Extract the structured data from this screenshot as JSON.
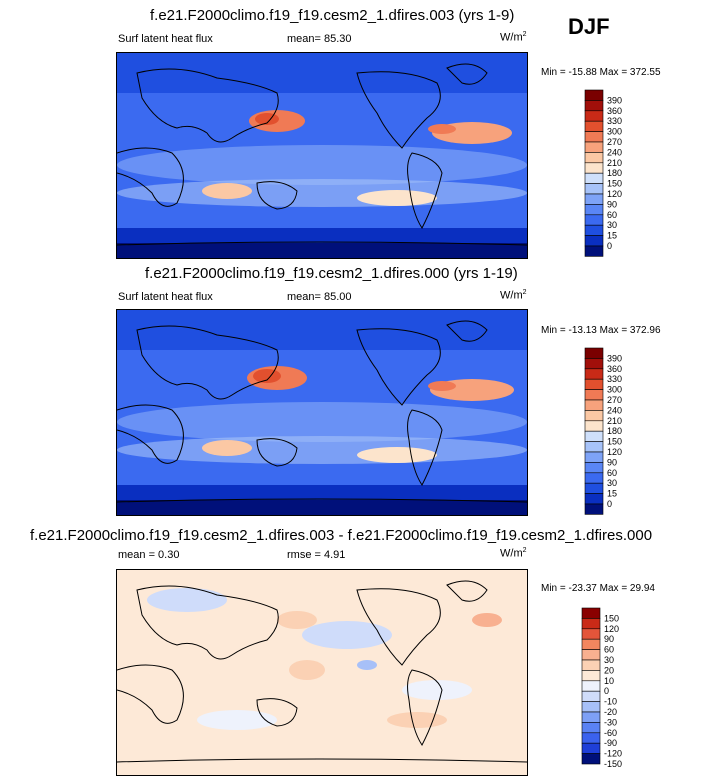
{
  "season": "DJF",
  "colors": {
    "abs_scale": [
      "#00107a",
      "#0a2fc0",
      "#1f4fe0",
      "#3b6af0",
      "#5a86f5",
      "#7ea3f7",
      "#a7c3f9",
      "#cfe0fb",
      "#f5f5f5",
      "#fce4cc",
      "#fbc8a4",
      "#f7a27c",
      "#f07a55",
      "#e2502e",
      "#c92a17",
      "#a10f0a",
      "#7a0000"
    ],
    "diff_scale": [
      "#00107a",
      "#1f3fd8",
      "#3b62ee",
      "#5a82f4",
      "#7ea0f6",
      "#a7c0f8",
      "#cfdcfa",
      "#eef2fc",
      "#fde9d7",
      "#fbd1b4",
      "#f8b090",
      "#f2865f",
      "#e4553a",
      "#c92a17",
      "#8a0000"
    ],
    "land_line": "#000000"
  },
  "panels": [
    {
      "id": "test",
      "title": "f.e21.F2000climo.f19_f19.cesm2_1.dfires.003 (yrs 1-9)",
      "left_label": "Surf latent heat flux",
      "center_label": "mean=  85.30",
      "units_base": "W/m",
      "units_exp": "2",
      "minmax": "Min = -15.88 Max = 372.55",
      "colorbar_labels": [
        "390",
        "360",
        "330",
        "300",
        "270",
        "240",
        "210",
        "180",
        "150",
        "120",
        "90",
        "60",
        "30",
        "15",
        "0"
      ]
    },
    {
      "id": "control",
      "title": "f.e21.F2000climo.f19_f19.cesm2_1.dfires.000 (yrs 1-19)",
      "left_label": "Surf latent heat flux",
      "center_label": "mean=  85.00",
      "units_base": "W/m",
      "units_exp": "2",
      "minmax": "Min = -13.13 Max = 372.96",
      "colorbar_labels": [
        "390",
        "360",
        "330",
        "300",
        "270",
        "240",
        "210",
        "180",
        "150",
        "120",
        "90",
        "60",
        "30",
        "15",
        "0"
      ]
    },
    {
      "id": "difference",
      "title": "f.e21.F2000climo.f19_f19.cesm2_1.dfires.003 - f.e21.F2000climo.f19_f19.cesm2_1.dfires.000",
      "left_label": "mean =   0.30",
      "center_label": "rmse =   4.91",
      "units_base": "W/m",
      "units_exp": "2",
      "minmax": "Min = -23.37 Max =  29.94",
      "colorbar_labels": [
        "150",
        "120",
        "90",
        "60",
        "30",
        "20",
        "10",
        "0",
        "-10",
        "-20",
        "-30",
        "-60",
        "-90",
        "-120",
        "-150"
      ]
    }
  ]
}
